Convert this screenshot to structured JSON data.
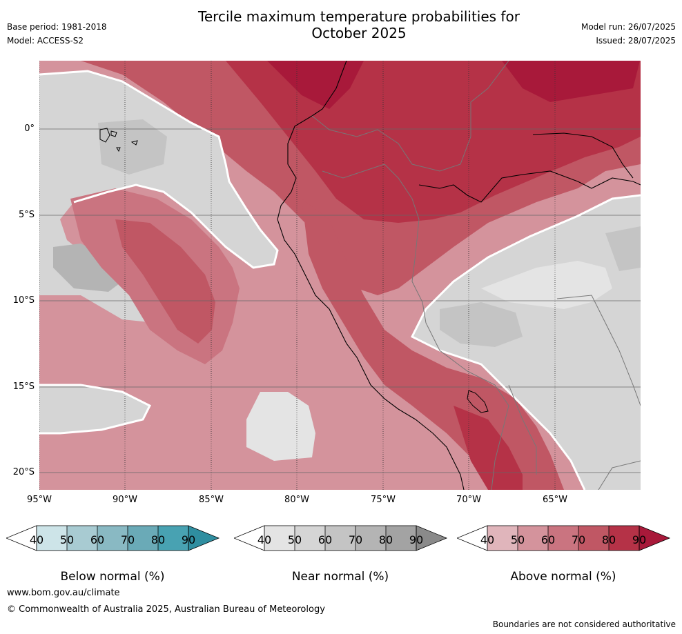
{
  "header": {
    "title_line1": "Tercile maximum temperature probabilities for",
    "title_line2": "October 2025",
    "base_period": "Base period: 1981-2018",
    "model": "Model: ACCESS-S2",
    "model_run": "Model run: 26/07/2025",
    "issued": "Issued: 28/07/2025"
  },
  "map": {
    "lat_ticks": [
      "0°",
      "5°S",
      "10°S",
      "15°S",
      "20°S"
    ],
    "lon_ticks": [
      "95°W",
      "90°W",
      "85°W",
      "80°W",
      "75°W",
      "70°W",
      "65°W"
    ],
    "colors": {
      "below": [
        "#cde4e8",
        "#a8cbd2",
        "#89b9c3",
        "#6aaab7",
        "#48a2b2",
        "#2f8ea0"
      ],
      "near": [
        "#e4e4e4",
        "#d5d5d5",
        "#c4c4c4",
        "#b4b4b4",
        "#a3a3a3",
        "#8a8a8a"
      ],
      "above": [
        "#e0b5bb",
        "#d4939c",
        "#ca7480",
        "#c05764",
        "#b53247",
        "#a8193a"
      ]
    }
  },
  "legends": {
    "ticks": [
      "40",
      "50",
      "60",
      "70",
      "80",
      "90"
    ],
    "below_label": "Below normal (%)",
    "near_label": "Near normal (%)",
    "above_label": "Above normal (%)"
  },
  "footer": {
    "url": "www.bom.gov.au/climate",
    "copyright": "© Commonwealth of Australia 2025, Australian Bureau of Meteorology",
    "disclaimer": "Boundaries are not considered authoritative"
  }
}
